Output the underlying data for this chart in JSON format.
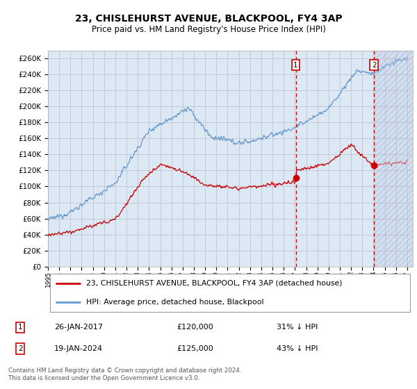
{
  "title": "23, CHISLEHURST AVENUE, BLACKPOOL, FY4 3AP",
  "subtitle": "Price paid vs. HM Land Registry's House Price Index (HPI)",
  "legend_line1": "23, CHISLEHURST AVENUE, BLACKPOOL, FY4 3AP (detached house)",
  "legend_line2": "HPI: Average price, detached house, Blackpool",
  "transaction1_date": "26-JAN-2017",
  "transaction1_price": "£120,000",
  "transaction1_hpi": "31% ↓ HPI",
  "transaction1_year": 2017.07,
  "transaction2_date": "19-JAN-2024",
  "transaction2_price": "£125,000",
  "transaction2_hpi": "43% ↓ HPI",
  "transaction2_year": 2024.05,
  "footer": "Contains HM Land Registry data © Crown copyright and database right 2024.\nThis data is licensed under the Open Government Licence v3.0.",
  "ylim_min": 0,
  "ylim_max": 270000,
  "xlim_min": 1995,
  "xlim_max": 2027.5,
  "hpi_color": "#6699cc",
  "price_color": "#cc0000",
  "background_plot": "#dde8f5",
  "grid_color": "#bbbbcc",
  "dashed_line_color": "#cc0000",
  "future_start": 2024.1
}
